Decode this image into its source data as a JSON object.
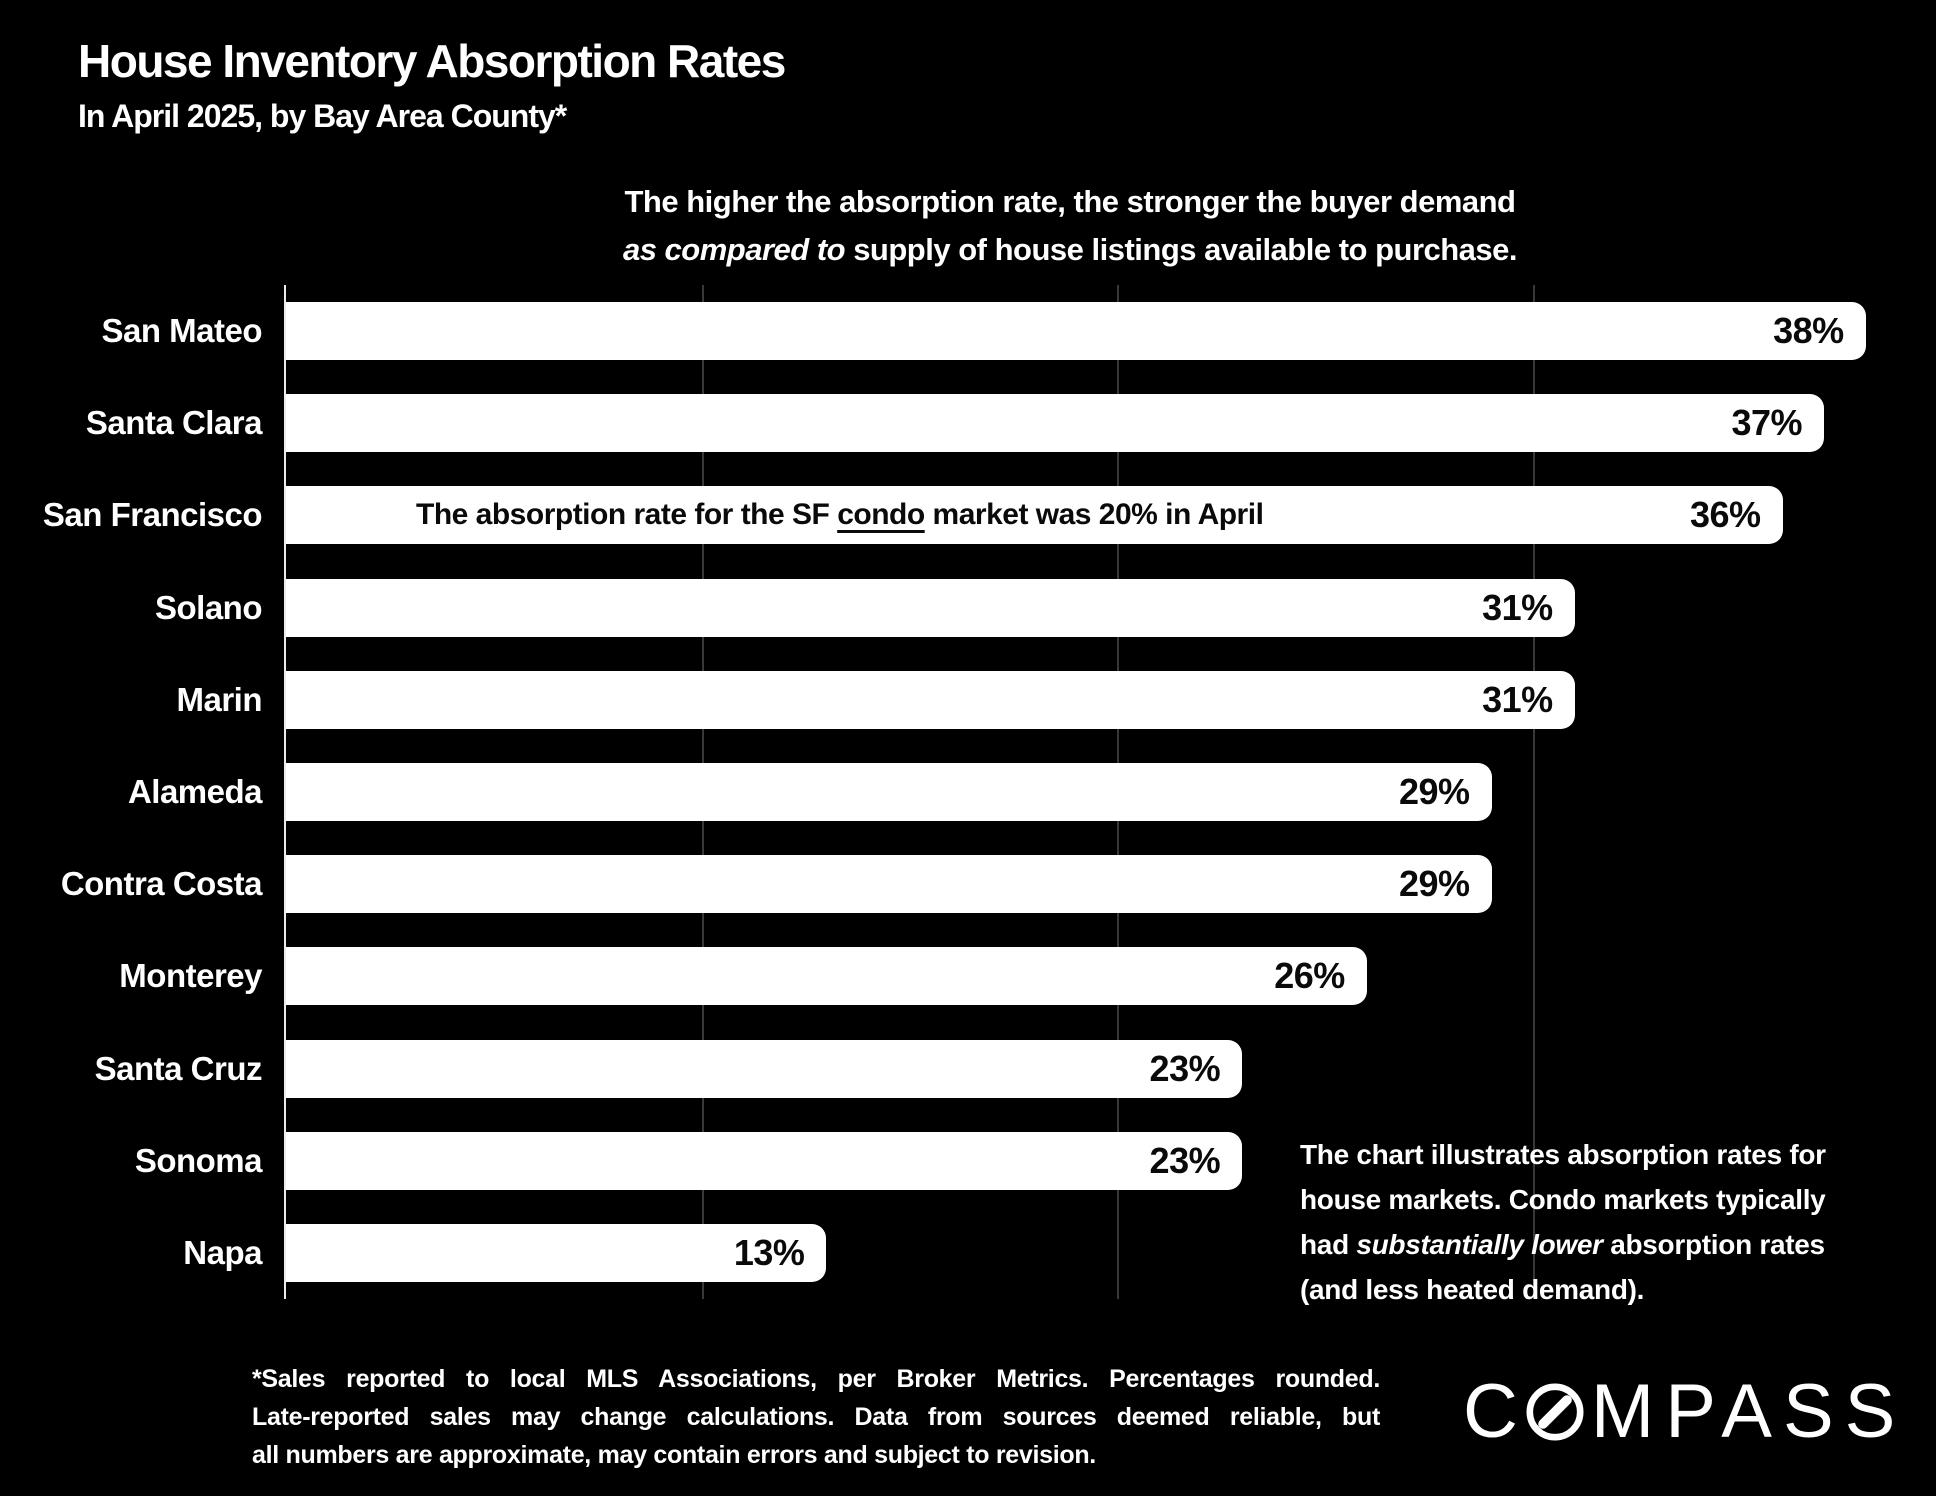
{
  "header": {
    "title": "House Inventory Absorption Rates",
    "subtitle": "In April 2025, by Bay Area County*"
  },
  "caption": {
    "line1": "The higher the absorption rate, the stronger the buyer demand",
    "line2_parts": [
      {
        "text": "as compared to",
        "italic": true
      },
      {
        "text": " supply of house listings available to purchase."
      }
    ]
  },
  "chart_data": {
    "type": "bar",
    "orientation": "horizontal",
    "title": "House Inventory Absorption Rates",
    "subtitle": "In April 2025, by Bay Area County*",
    "categories": [
      "San Mateo",
      "Santa Clara",
      "San Francisco",
      "Solano",
      "Marin",
      "Alameda",
      "Contra Costa",
      "Monterey",
      "Santa Cruz",
      "Sonoma",
      "Napa"
    ],
    "values": [
      38,
      37,
      36,
      31,
      31,
      29,
      29,
      26,
      23,
      23,
      13
    ],
    "unit": "%",
    "xlim": [
      0,
      39.7
    ],
    "gridlines_pct": [
      10,
      20,
      30
    ],
    "grid": true,
    "legend": "none",
    "bar_color": "#ffffff",
    "bar_annotation": {
      "row_index": 2,
      "parts": [
        {
          "text": "The absorption rate for the SF "
        },
        {
          "text": "condo",
          "underline": true
        },
        {
          "text": " market was 20% in April"
        }
      ]
    }
  },
  "side_note_lines": [
    [
      {
        "text": "The chart illustrates absorption rates for"
      }
    ],
    [
      {
        "text": "house markets. Condo markets typically"
      }
    ],
    [
      {
        "text": "had "
      },
      {
        "text": "substantially lower",
        "italic": true
      },
      {
        "text": " absorption rates"
      }
    ],
    [
      {
        "text": "(and less heated demand)."
      }
    ]
  ],
  "footnote_lines": [
    "*Sales reported to local MLS Associations, per Broker Metrics. Percentages rounded.",
    "Late-reported sales may change calculations. Data from sources deemed reliable, but",
    "all numbers are approximate, may contain errors and subject to revision."
  ],
  "logo": {
    "pre": "C",
    "post": "MPASS",
    "name": "COMPASS"
  },
  "colors": {
    "background": "#000000",
    "bar": "#ffffff",
    "text": "#ffffff",
    "bar_text": "#0a0a0a",
    "gridline": "#383838",
    "axis_line": "#ececec"
  }
}
